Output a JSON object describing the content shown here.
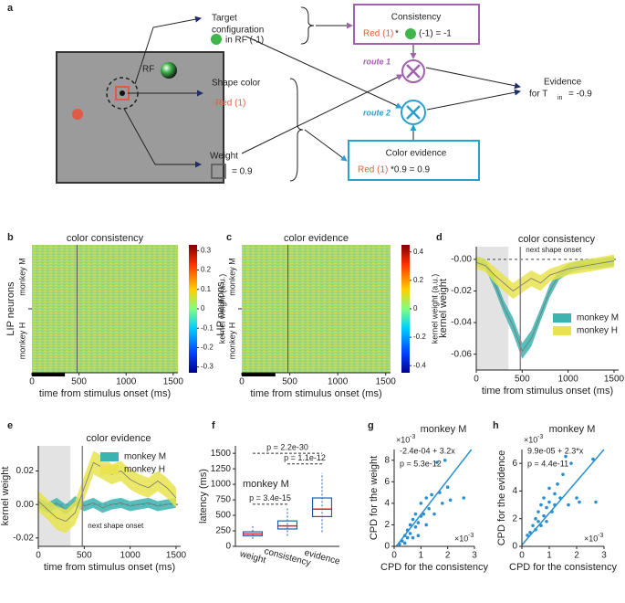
{
  "diagram": {
    "label": "a",
    "rf": "RF",
    "target": [
      "Target",
      "configuration"
    ],
    "in_rf": "in RF (-1)",
    "shape_color": "Shape color",
    "red_one": "Red (1)",
    "weight": "Weight",
    "weight_value": "= 0.9",
    "consistency": "Consistency",
    "consistency_red": "Red (1)",
    "consistency_op": " * ",
    "consistency_rest": "(-1) = -1",
    "route1": "route 1",
    "route2": "route 2",
    "color_evidence": "Color evidence",
    "evidence_red": "Red (1)",
    "evidence_rest": " *0.9 = 0.9",
    "evidence": "Evidence",
    "evidence_for": "for T",
    "evidence_sub": "in",
    "evidence_value": "= -0.9"
  },
  "chart_data": [
    {
      "type": "heatmap",
      "label": "b",
      "title": "color consistency",
      "xlabel": "time from stimulus onset (ms)",
      "ylabel": "LIP neurons",
      "rows": [
        "monkey M",
        "monkey H"
      ],
      "xlim": [
        0,
        1550
      ],
      "xticks": [
        0,
        500,
        1000,
        1500
      ],
      "marker_time": 480,
      "stimulus_bar": [
        0,
        350
      ],
      "colorbar_label": "kernel weight (a.u.)",
      "clim": [
        -0.33,
        0.33
      ],
      "cticks": [
        0.3,
        0.2,
        0.1,
        0,
        -0.1,
        -0.2,
        -0.3
      ]
    },
    {
      "type": "heatmap",
      "label": "c",
      "title": "color evidence",
      "xlabel": "time from stimulus onset (ms)",
      "ylabel": "LIP neurons",
      "rows": [
        "monkey M",
        "monkey H"
      ],
      "xlim": [
        0,
        1550
      ],
      "xticks": [
        0,
        500,
        1000,
        1500
      ],
      "marker_time": 480,
      "stimulus_bar": [
        0,
        350
      ],
      "colorbar_label": "kernel weight (a.u.)",
      "clim": [
        -0.45,
        0.45
      ],
      "cticks": [
        0.4,
        0.2,
        0,
        -0.2,
        -0.4
      ]
    },
    {
      "type": "line",
      "label": "d",
      "title": "color consistency",
      "xlabel": "time from stimulus onset (ms)",
      "ylabel": "kernel weight",
      "annotation": "next shape onset",
      "xlim": [
        0,
        1550
      ],
      "xticks": [
        0,
        500,
        1000,
        1500
      ],
      "ylim": [
        -0.07,
        0.008
      ],
      "yticks": [
        {
          "value": 0,
          "label": "-0.00"
        },
        -0.02,
        -0.04,
        -0.06
      ],
      "shade": [
        0,
        350
      ],
      "marker_time": 480,
      "x": [
        0,
        100,
        200,
        300,
        400,
        500,
        600,
        700,
        800,
        900,
        1000,
        1100,
        1200,
        1300,
        1400,
        1500
      ],
      "series": [
        {
          "name": "monkey M",
          "color": "#3bb3b0",
          "values": [
            -0.001,
            -0.003,
            -0.015,
            -0.03,
            -0.042,
            -0.058,
            -0.05,
            -0.035,
            -0.02,
            -0.01,
            -0.006,
            -0.004,
            -0.003,
            -0.003,
            -0.002,
            -0.001
          ],
          "errors": [
            0.003,
            0.003,
            0.004,
            0.004,
            0.005,
            0.005,
            0.005,
            0.004,
            0.004,
            0.003,
            0.003,
            0.003,
            0.003,
            0.003,
            0.003,
            0.003
          ]
        },
        {
          "name": "monkey H",
          "color": "#e8e34e",
          "values": [
            -0.002,
            -0.004,
            -0.01,
            -0.015,
            -0.02,
            -0.016,
            -0.012,
            -0.015,
            -0.01,
            -0.008,
            -0.006,
            -0.005,
            -0.004,
            -0.003,
            -0.002,
            -0.001
          ],
          "errors": [
            0.004,
            0.004,
            0.005,
            0.005,
            0.005,
            0.005,
            0.005,
            0.005,
            0.004,
            0.004,
            0.004,
            0.004,
            0.004,
            0.004,
            0.004,
            0.004
          ]
        }
      ]
    },
    {
      "type": "line",
      "label": "e",
      "title": "color evidence",
      "xlabel": "time from stimulus onset (ms)",
      "ylabel": "kernel weight",
      "annotation": "next shape onset",
      "xlim": [
        0,
        1550
      ],
      "xticks": [
        0,
        500,
        1000,
        1500
      ],
      "ylim": [
        -0.025,
        0.035
      ],
      "yticks": [
        {
          "value": -0.02,
          "label": "-0.02"
        },
        {
          "value": 0,
          "label": "0.00"
        },
        {
          "value": 0.02,
          "label": "0.02"
        }
      ],
      "shade": [
        0,
        350
      ],
      "marker_time": 480,
      "x": [
        0,
        100,
        200,
        300,
        400,
        500,
        600,
        700,
        800,
        900,
        1000,
        1100,
        1200,
        1300,
        1400,
        1500
      ],
      "series": [
        {
          "name": "monkey M",
          "color": "#3bb3b0",
          "values": [
            0.001,
            -0.002,
            0.001,
            -0.003,
            0.002,
            -0.001,
            0.001,
            -0.002,
            0.0,
            0.001,
            -0.001,
            0.0,
            0.001,
            -0.001,
            0.0,
            0.001
          ],
          "errors": [
            0.003,
            0.003,
            0.003,
            0.003,
            0.003,
            0.003,
            0.003,
            0.003,
            0.003,
            0.003,
            0.003,
            0.003,
            0.003,
            0.003,
            0.003,
            0.003
          ]
        },
        {
          "name": "monkey H",
          "color": "#e8e34e",
          "values": [
            0.002,
            -0.003,
            -0.008,
            -0.01,
            -0.005,
            0.01,
            0.025,
            0.022,
            0.018,
            0.02,
            0.015,
            0.012,
            0.01,
            0.014,
            0.01,
            0.004
          ],
          "errors": [
            0.006,
            0.006,
            0.007,
            0.007,
            0.007,
            0.007,
            0.007,
            0.007,
            0.006,
            0.006,
            0.006,
            0.006,
            0.006,
            0.006,
            0.006,
            0.006
          ]
        }
      ]
    },
    {
      "type": "box",
      "label": "f",
      "ylabel": "latency (ms)",
      "annotation": "monkey M",
      "categories": [
        "weight",
        "consistency",
        "evidence"
      ],
      "ylim": [
        0,
        1620
      ],
      "yticks": [
        0,
        250,
        500,
        750,
        1000,
        1250,
        1500
      ],
      "boxes": [
        {
          "low": 120,
          "q1": 170,
          "median": 200,
          "q3": 235,
          "high": 330
        },
        {
          "low": 170,
          "q1": 280,
          "median": 330,
          "q3": 410,
          "high": 620
        },
        {
          "low": 230,
          "q1": 480,
          "median": 600,
          "q3": 780,
          "high": 1180
        }
      ],
      "comparisons": [
        {
          "pair": [
            0,
            1
          ],
          "y": 680,
          "label": "p = 3.4e-15"
        },
        {
          "pair": [
            1,
            2
          ],
          "y": 1330,
          "label": "p = 1.1e-12"
        },
        {
          "pair": [
            0,
            2
          ],
          "y": 1500,
          "label": "p = 2.2e-30"
        }
      ]
    },
    {
      "type": "scatter",
      "label": "g",
      "title": "monkey M",
      "xlabel": "CPD for the consistency",
      "ylabel": "CPD for the weight",
      "xexp": "×10",
      "yexp": "×10",
      "exp": "-3",
      "fit_label": "-2.4e-04 + 3.2x",
      "p_label": "p = 5.3e-12",
      "fit": {
        "intercept": -0.24,
        "slope": 3.2
      },
      "color": "#2a8fd0",
      "xlim": [
        0,
        3
      ],
      "xticks": [
        0,
        1,
        2,
        3
      ],
      "ylim": [
        0,
        9
      ],
      "yticks": [
        0,
        2,
        4,
        6,
        8
      ],
      "x": [
        0.2,
        0.3,
        0.4,
        0.4,
        0.5,
        0.5,
        0.6,
        0.6,
        0.7,
        0.7,
        0.8,
        0.8,
        0.9,
        0.9,
        1.0,
        1.0,
        1.1,
        1.2,
        1.2,
        1.3,
        1.4,
        1.5,
        1.6,
        1.7,
        1.8,
        1.9,
        2.0,
        2.1,
        2.6
      ],
      "y": [
        0.2,
        0.5,
        0.3,
        1.0,
        0.8,
        1.5,
        2.0,
        1.2,
        2.5,
        0.8,
        1.8,
        3.0,
        2.2,
        1.0,
        2.8,
        4.0,
        3.0,
        2.0,
        4.5,
        3.5,
        4.8,
        3.0,
        7.8,
        5.0,
        4.0,
        8.0,
        5.5,
        4.3,
        4.5
      ]
    },
    {
      "type": "scatter",
      "label": "h",
      "title": "monkey M",
      "xlabel": "CPD for the consistency",
      "ylabel": "CPD for the evidence",
      "xexp": "×10",
      "yexp": "×10",
      "exp": "-3",
      "fit_label": "9.9e-05 + 2.3*x",
      "p_label": "p = 4.4e-11",
      "fit": {
        "intercept": 0.099,
        "slope": 2.3
      },
      "color": "#2a8fd0",
      "xlim": [
        0,
        3
      ],
      "xticks": [
        0,
        1,
        2,
        3
      ],
      "ylim": [
        0,
        7
      ],
      "yticks": [
        0,
        2,
        4,
        6
      ],
      "x": [
        0.2,
        0.3,
        0.4,
        0.5,
        0.5,
        0.6,
        0.6,
        0.7,
        0.7,
        0.8,
        0.8,
        0.9,
        0.9,
        1.0,
        1.0,
        1.1,
        1.2,
        1.2,
        1.3,
        1.4,
        1.5,
        1.6,
        1.7,
        1.8,
        2.0,
        2.1,
        2.6,
        2.7
      ],
      "y": [
        0.8,
        1.0,
        1.5,
        1.2,
        2.0,
        1.8,
        2.5,
        1.5,
        3.0,
        2.2,
        3.5,
        2.8,
        1.8,
        3.2,
        4.2,
        2.5,
        3.0,
        3.8,
        4.5,
        3.5,
        5.2,
        6.5,
        3.0,
        6.0,
        3.5,
        3.2,
        6.3,
        3.2
      ]
    }
  ]
}
